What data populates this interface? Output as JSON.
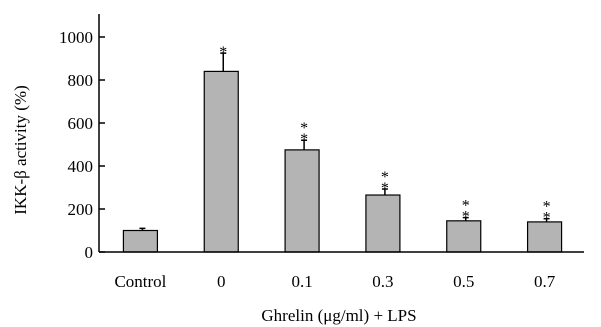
{
  "chart_data": {
    "type": "bar",
    "title": "",
    "xlabel": "Ghrelin (μg/ml) + LPS",
    "ylabel": "IKK-β activity (%)",
    "ylim": [
      0,
      1000
    ],
    "yticks": [
      "0",
      "200",
      "400",
      "600",
      "800",
      "1000"
    ],
    "ytick_values": [
      0,
      200,
      400,
      600,
      800,
      1000
    ],
    "categories": [
      "Control",
      "0",
      "0.1",
      "0.3",
      "0.5",
      "0.7"
    ],
    "values": [
      100,
      840,
      475,
      265,
      145,
      140
    ],
    "errors": [
      10,
      85,
      45,
      28,
      15,
      15
    ],
    "significance": [
      "",
      "*",
      "**",
      "**",
      "**",
      "**"
    ],
    "grid": false,
    "bar_color": "#b4b4b4",
    "edge_color": "#000000"
  }
}
